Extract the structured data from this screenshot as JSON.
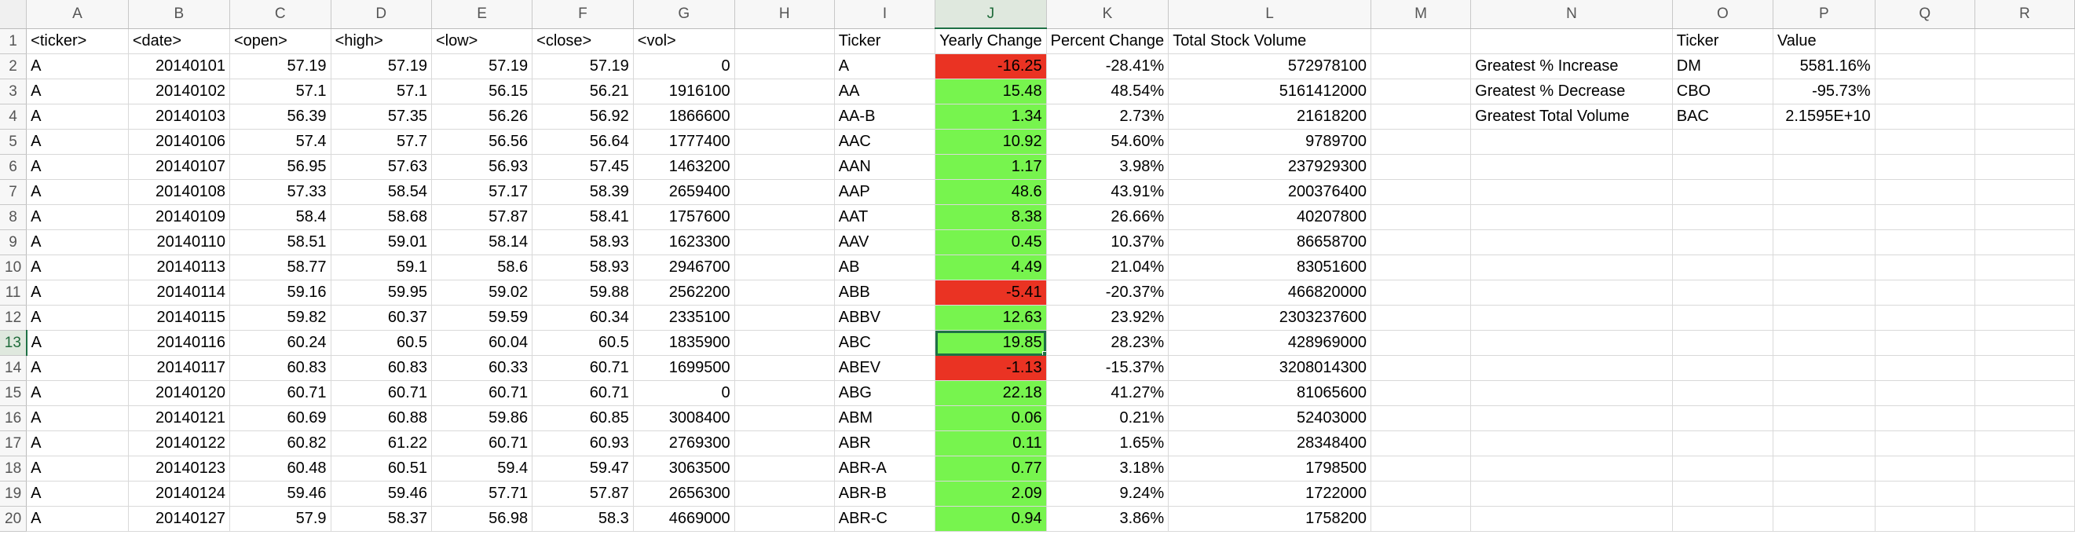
{
  "columns": [
    "A",
    "B",
    "C",
    "D",
    "E",
    "F",
    "G",
    "H",
    "I",
    "J",
    "K",
    "L",
    "M",
    "N",
    "O",
    "P",
    "Q",
    "R"
  ],
  "selection": {
    "row": 13,
    "column": "J"
  },
  "colors": {
    "positive": "#77f44e",
    "negative": "#ea3323",
    "selection": "#1e7145"
  },
  "rows": [
    {
      "n": "1",
      "A": "<ticker>",
      "B": "<date>",
      "C": "<open>",
      "D": "<high>",
      "E": "<low>",
      "F": "<close>",
      "G": "<vol>",
      "I": "Ticker",
      "J": "Yearly Change",
      "K": "Percent Change",
      "L": "Total Stock Volume",
      "O": "Ticker",
      "P": "Value"
    },
    {
      "n": "2",
      "A": "A",
      "B": "20140101",
      "C": "57.19",
      "D": "57.19",
      "E": "57.19",
      "F": "57.19",
      "G": "0",
      "I": "A",
      "J": "-16.25",
      "K": "-28.41%",
      "L": "572978100",
      "N": "Greatest % Increase",
      "O": "DM",
      "P": "5581.16%"
    },
    {
      "n": "3",
      "A": "A",
      "B": "20140102",
      "C": "57.1",
      "D": "57.1",
      "E": "56.15",
      "F": "56.21",
      "G": "1916100",
      "I": "AA",
      "J": "15.48",
      "K": "48.54%",
      "L": "5161412000",
      "N": "Greatest % Decrease",
      "O": "CBO",
      "P": "-95.73%"
    },
    {
      "n": "4",
      "A": "A",
      "B": "20140103",
      "C": "56.39",
      "D": "57.35",
      "E": "56.26",
      "F": "56.92",
      "G": "1866600",
      "I": "AA-B",
      "J": "1.34",
      "K": "2.73%",
      "L": "21618200",
      "N": "Greatest Total Volume",
      "O": "BAC",
      "P": "2.1595E+10"
    },
    {
      "n": "5",
      "A": "A",
      "B": "20140106",
      "C": "57.4",
      "D": "57.7",
      "E": "56.56",
      "F": "56.64",
      "G": "1777400",
      "I": "AAC",
      "J": "10.92",
      "K": "54.60%",
      "L": "9789700"
    },
    {
      "n": "6",
      "A": "A",
      "B": "20140107",
      "C": "56.95",
      "D": "57.63",
      "E": "56.93",
      "F": "57.45",
      "G": "1463200",
      "I": "AAN",
      "J": "1.17",
      "K": "3.98%",
      "L": "237929300"
    },
    {
      "n": "7",
      "A": "A",
      "B": "20140108",
      "C": "57.33",
      "D": "58.54",
      "E": "57.17",
      "F": "58.39",
      "G": "2659400",
      "I": "AAP",
      "J": "48.6",
      "K": "43.91%",
      "L": "200376400"
    },
    {
      "n": "8",
      "A": "A",
      "B": "20140109",
      "C": "58.4",
      "D": "58.68",
      "E": "57.87",
      "F": "58.41",
      "G": "1757600",
      "I": "AAT",
      "J": "8.38",
      "K": "26.66%",
      "L": "40207800"
    },
    {
      "n": "9",
      "A": "A",
      "B": "20140110",
      "C": "58.51",
      "D": "59.01",
      "E": "58.14",
      "F": "58.93",
      "G": "1623300",
      "I": "AAV",
      "J": "0.45",
      "K": "10.37%",
      "L": "86658700"
    },
    {
      "n": "10",
      "A": "A",
      "B": "20140113",
      "C": "58.77",
      "D": "59.1",
      "E": "58.6",
      "F": "58.93",
      "G": "2946700",
      "I": "AB",
      "J": "4.49",
      "K": "21.04%",
      "L": "83051600"
    },
    {
      "n": "11",
      "A": "A",
      "B": "20140114",
      "C": "59.16",
      "D": "59.95",
      "E": "59.02",
      "F": "59.88",
      "G": "2562200",
      "I": "ABB",
      "J": "-5.41",
      "K": "-20.37%",
      "L": "466820000"
    },
    {
      "n": "12",
      "A": "A",
      "B": "20140115",
      "C": "59.82",
      "D": "60.37",
      "E": "59.59",
      "F": "60.34",
      "G": "2335100",
      "I": "ABBV",
      "J": "12.63",
      "K": "23.92%",
      "L": "2303237600"
    },
    {
      "n": "13",
      "A": "A",
      "B": "20140116",
      "C": "60.24",
      "D": "60.5",
      "E": "60.04",
      "F": "60.5",
      "G": "1835900",
      "I": "ABC",
      "J": "19.85",
      "K": "28.23%",
      "L": "428969000"
    },
    {
      "n": "14",
      "A": "A",
      "B": "20140117",
      "C": "60.83",
      "D": "60.83",
      "E": "60.33",
      "F": "60.71",
      "G": "1699500",
      "I": "ABEV",
      "J": "-1.13",
      "K": "-15.37%",
      "L": "3208014300"
    },
    {
      "n": "15",
      "A": "A",
      "B": "20140120",
      "C": "60.71",
      "D": "60.71",
      "E": "60.71",
      "F": "60.71",
      "G": "0",
      "I": "ABG",
      "J": "22.18",
      "K": "41.27%",
      "L": "81065600"
    },
    {
      "n": "16",
      "A": "A",
      "B": "20140121",
      "C": "60.69",
      "D": "60.88",
      "E": "59.86",
      "F": "60.85",
      "G": "3008400",
      "I": "ABM",
      "J": "0.06",
      "K": "0.21%",
      "L": "52403000"
    },
    {
      "n": "17",
      "A": "A",
      "B": "20140122",
      "C": "60.82",
      "D": "61.22",
      "E": "60.71",
      "F": "60.93",
      "G": "2769300",
      "I": "ABR",
      "J": "0.11",
      "K": "1.65%",
      "L": "28348400"
    },
    {
      "n": "18",
      "A": "A",
      "B": "20140123",
      "C": "60.48",
      "D": "60.51",
      "E": "59.4",
      "F": "59.47",
      "G": "3063500",
      "I": "ABR-A",
      "J": "0.77",
      "K": "3.18%",
      "L": "1798500"
    },
    {
      "n": "19",
      "A": "A",
      "B": "20140124",
      "C": "59.46",
      "D": "59.46",
      "E": "57.71",
      "F": "57.87",
      "G": "2656300",
      "I": "ABR-B",
      "J": "2.09",
      "K": "9.24%",
      "L": "1722000"
    },
    {
      "n": "20",
      "A": "A",
      "B": "20140127",
      "C": "57.9",
      "D": "58.37",
      "E": "56.98",
      "F": "58.3",
      "G": "4669000",
      "I": "ABR-C",
      "J": "0.94",
      "K": "3.86%",
      "L": "1758200"
    }
  ]
}
